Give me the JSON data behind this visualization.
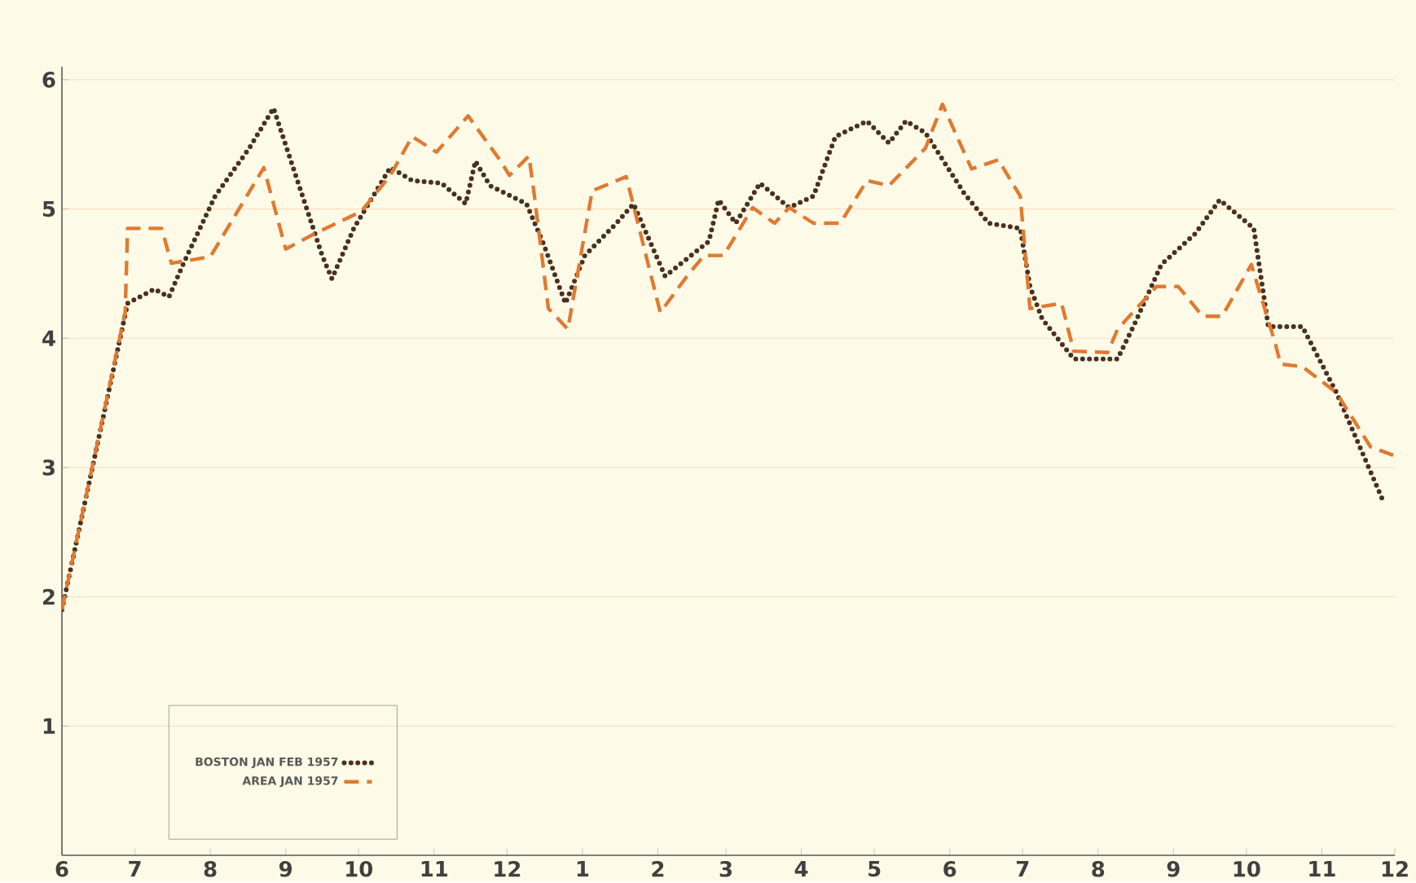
{
  "chart_data": {
    "type": "line",
    "xlim": [
      "1956-06-01",
      "1957-12-01"
    ],
    "ylim": [
      0,
      6.1
    ],
    "xticks": [
      {
        "value": "1956-06-01",
        "label": "6"
      },
      {
        "value": "1956-07-01",
        "label": "7"
      },
      {
        "value": "1956-08-01",
        "label": "8"
      },
      {
        "value": "1956-09-01",
        "label": "9"
      },
      {
        "value": "1956-10-01",
        "label": "10"
      },
      {
        "value": "1956-11-01",
        "label": "11"
      },
      {
        "value": "1956-12-01",
        "label": "12"
      },
      {
        "value": "1957-01-01",
        "label": "1"
      },
      {
        "value": "1957-02-01",
        "label": "2"
      },
      {
        "value": "1957-03-01",
        "label": "3"
      },
      {
        "value": "1957-04-01",
        "label": "4"
      },
      {
        "value": "1957-05-01",
        "label": "5"
      },
      {
        "value": "1957-06-01",
        "label": "6"
      },
      {
        "value": "1957-07-01",
        "label": "7"
      },
      {
        "value": "1957-08-01",
        "label": "8"
      },
      {
        "value": "1957-09-01",
        "label": "9"
      },
      {
        "value": "1957-10-01",
        "label": "10"
      },
      {
        "value": "1957-11-01",
        "label": "11"
      },
      {
        "value": "1957-12-01",
        "label": "12"
      }
    ],
    "yticks": [
      1,
      2,
      3,
      4,
      5,
      6
    ],
    "grid": "y",
    "legend": "bottom left",
    "marker": "none",
    "series": [
      {
        "name": "BOSTON JAN FEB 1957",
        "color": "#4a3020",
        "line_style": "dotted",
        "x": [
          "1956-06-01",
          "1956-06-28",
          "1956-07-09",
          "1956-07-15",
          "1956-07-21",
          "1956-08-03",
          "1956-08-17",
          "1956-08-27",
          "1956-09-03",
          "1956-09-16",
          "1956-09-20",
          "1956-09-29",
          "1956-10-14",
          "1956-10-23",
          "1956-11-04",
          "1956-11-14",
          "1956-11-18",
          "1956-11-24",
          "1956-12-09",
          "1956-12-16",
          "1956-12-25",
          "1957-01-02",
          "1957-01-15",
          "1957-01-22",
          "1957-02-04",
          "1957-02-22",
          "1957-02-26",
          "1957-03-05",
          "1957-03-15",
          "1957-03-27",
          "1957-04-06",
          "1957-04-15",
          "1957-04-28",
          "1957-05-07",
          "1957-05-14",
          "1957-05-22",
          "1957-06-07",
          "1957-06-17",
          "1957-06-30",
          "1957-07-04",
          "1957-07-09",
          "1957-07-22",
          "1957-08-09",
          "1957-08-16",
          "1957-08-27",
          "1957-09-10",
          "1957-09-20",
          "1957-10-04",
          "1957-10-10",
          "1957-10-24",
          "1957-11-07",
          "1957-11-26"
        ],
        "values": [
          1.9,
          4.27,
          4.38,
          4.32,
          4.58,
          5.1,
          5.47,
          5.78,
          5.38,
          4.64,
          4.46,
          4.85,
          5.32,
          5.22,
          5.2,
          5.04,
          5.37,
          5.18,
          5.04,
          4.73,
          4.27,
          4.64,
          4.89,
          5.04,
          4.48,
          4.75,
          5.07,
          4.89,
          5.2,
          5.01,
          5.1,
          5.56,
          5.68,
          5.51,
          5.68,
          5.59,
          5.12,
          4.89,
          4.85,
          4.4,
          4.15,
          3.84,
          3.84,
          4.11,
          4.57,
          4.81,
          5.07,
          4.85,
          4.09,
          4.09,
          3.58,
          2.75
        ]
      },
      {
        "name": "AREA JAN 1957",
        "color": "#e07a30",
        "line_style": "dashed",
        "x": [
          "1956-06-01",
          "1956-06-27",
          "1956-06-28",
          "1956-07-12",
          "1956-07-16",
          "1956-08-01",
          "1956-08-23",
          "1956-09-01",
          "1956-09-13",
          "1956-10-02",
          "1956-10-14",
          "1956-10-23",
          "1956-11-02",
          "1956-11-15",
          "1956-11-28",
          "1956-12-02",
          "1956-12-10",
          "1956-12-12",
          "1956-12-18",
          "1956-12-26",
          "1957-01-05",
          "1957-01-19",
          "1957-02-02",
          "1957-02-13",
          "1957-02-20",
          "1957-02-28",
          "1957-03-12",
          "1957-03-21",
          "1957-03-27",
          "1957-04-06",
          "1957-04-17",
          "1957-04-28",
          "1957-05-07",
          "1957-05-22",
          "1957-05-29",
          "1957-06-10",
          "1957-06-21",
          "1957-06-30",
          "1957-07-04",
          "1957-07-17",
          "1957-07-22",
          "1957-08-05",
          "1957-08-09",
          "1957-08-25",
          "1957-09-03",
          "1957-09-13",
          "1957-09-21",
          "1957-10-03",
          "1957-10-13",
          "1957-10-15",
          "1957-10-24",
          "1957-11-07",
          "1957-11-21",
          "1957-12-01"
        ],
        "values": [
          1.9,
          4.2,
          4.85,
          4.85,
          4.58,
          4.63,
          5.32,
          4.69,
          4.81,
          4.98,
          5.26,
          5.56,
          5.44,
          5.72,
          5.38,
          5.26,
          5.41,
          5.14,
          4.23,
          4.07,
          5.14,
          5.25,
          4.2,
          4.48,
          4.64,
          4.64,
          5.01,
          4.89,
          5.01,
          4.89,
          4.89,
          5.22,
          5.18,
          5.47,
          5.81,
          5.31,
          5.38,
          5.1,
          4.23,
          4.27,
          3.9,
          3.89,
          4.07,
          4.4,
          4.4,
          4.17,
          4.17,
          4.57,
          3.95,
          3.8,
          3.78,
          3.58,
          3.16,
          3.09
        ]
      }
    ]
  }
}
